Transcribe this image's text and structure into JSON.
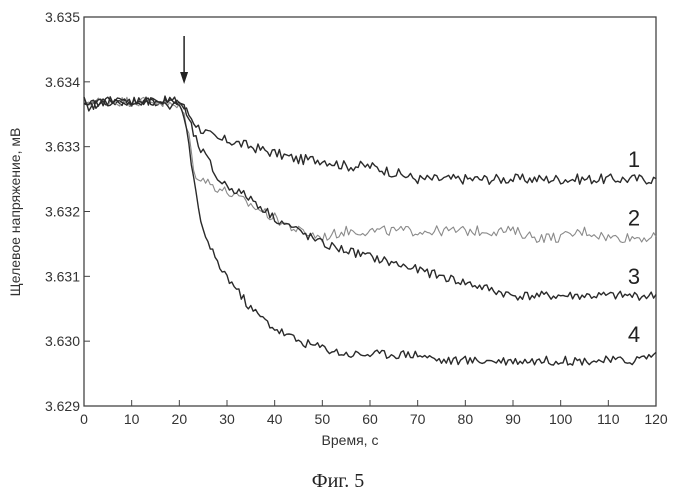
{
  "caption": "Фиг. 5",
  "chart_data": {
    "type": "line",
    "title": "",
    "xlabel": "Время, с",
    "ylabel": "Щелевое напряжение, мВ",
    "xlim": [
      0,
      120
    ],
    "ylim": [
      3.629,
      3.635
    ],
    "xticks": [
      0,
      10,
      20,
      30,
      40,
      50,
      60,
      70,
      80,
      90,
      100,
      110,
      120
    ],
    "yticks": [
      "3.629",
      "3.630",
      "3.631",
      "3.632",
      "3.633",
      "3.634",
      "3.635"
    ],
    "grid": false,
    "annotation": {
      "type": "arrow",
      "x": 21,
      "label": "↓"
    },
    "series": [
      {
        "name": "1",
        "color": "#2a2a2a",
        "x": [
          0,
          5,
          10,
          15,
          20,
          21,
          22,
          24,
          26,
          28,
          30,
          35,
          40,
          45,
          50,
          55,
          60,
          65,
          70,
          75,
          80,
          85,
          90,
          95,
          100,
          105,
          110,
          115,
          120
        ],
        "y": [
          3.6336,
          3.6337,
          3.6337,
          3.6337,
          3.6337,
          3.6336,
          3.6335,
          3.6333,
          3.6332,
          3.6331,
          3.6331,
          3.633,
          3.6329,
          3.6328,
          3.6328,
          3.6327,
          3.6327,
          3.6326,
          3.6325,
          3.6325,
          3.6325,
          3.6325,
          3.6325,
          3.6325,
          3.6325,
          3.6325,
          3.6325,
          3.6325,
          3.6325
        ]
      },
      {
        "name": "2",
        "color": "#8a8a8a",
        "x": [
          0,
          5,
          10,
          15,
          20,
          21,
          22,
          23,
          25,
          27,
          30,
          35,
          40,
          45,
          50,
          55,
          60,
          65,
          70,
          75,
          80,
          85,
          90,
          95,
          100,
          105,
          110,
          115,
          120
        ],
        "y": [
          3.6337,
          3.6337,
          3.6337,
          3.6337,
          3.6336,
          3.6335,
          3.6332,
          3.6326,
          3.6325,
          3.6324,
          3.6323,
          3.6321,
          3.6319,
          3.6317,
          3.6316,
          3.6317,
          3.6317,
          3.6317,
          3.6317,
          3.6317,
          3.6317,
          3.6317,
          3.6317,
          3.6316,
          3.6316,
          3.6317,
          3.6316,
          3.6316,
          3.6316
        ]
      },
      {
        "name": "3",
        "color": "#2a2a2a",
        "x": [
          0,
          5,
          10,
          15,
          20,
          21,
          22,
          24,
          26,
          28,
          30,
          35,
          40,
          45,
          50,
          55,
          60,
          65,
          70,
          75,
          80,
          85,
          90,
          95,
          100,
          105,
          110,
          115,
          120
        ],
        "y": [
          3.6336,
          3.6337,
          3.6337,
          3.6337,
          3.6337,
          3.6336,
          3.6334,
          3.633,
          3.6328,
          3.6325,
          3.6324,
          3.6322,
          3.6319,
          3.6317,
          3.6315,
          3.6314,
          3.6313,
          3.6312,
          3.6311,
          3.631,
          3.6309,
          3.6308,
          3.6307,
          3.6307,
          3.6307,
          3.6307,
          3.6307,
          3.6307,
          3.6307
        ]
      },
      {
        "name": "4",
        "color": "#2a2a2a",
        "x": [
          0,
          5,
          10,
          15,
          20,
          21,
          22,
          23,
          24,
          26,
          28,
          30,
          35,
          40,
          45,
          50,
          55,
          60,
          65,
          70,
          75,
          80,
          85,
          90,
          95,
          100,
          105,
          110,
          115,
          120
        ],
        "y": [
          3.6337,
          3.6337,
          3.6337,
          3.6337,
          3.6336,
          3.6335,
          3.633,
          3.6325,
          3.632,
          3.6315,
          3.6312,
          3.631,
          3.6305,
          3.6302,
          3.63,
          3.6299,
          3.6298,
          3.6298,
          3.6298,
          3.6298,
          3.6297,
          3.6297,
          3.6297,
          3.6297,
          3.6297,
          3.6297,
          3.6297,
          3.6297,
          3.6297,
          3.6298
        ]
      }
    ]
  }
}
